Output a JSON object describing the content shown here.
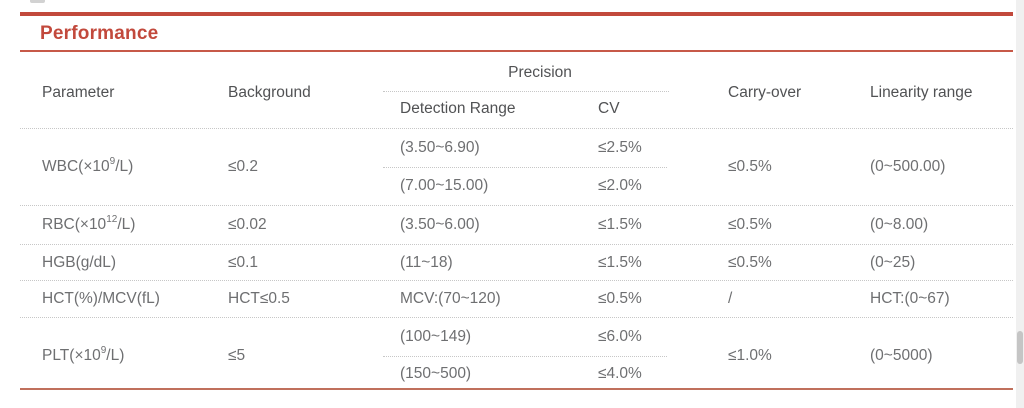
{
  "section": {
    "title": "Performance"
  },
  "colors": {
    "accent_red": "#c2493c",
    "thin_rule_red": "#c75948",
    "bottom_rule_red": "#c0705c",
    "header_text": "#515254",
    "body_text": "#6e6f71",
    "dotted_line": "#c7c7c7",
    "scrollbar_track": "#f0f0f0",
    "scrollbar_thumb": "#c5c5c5"
  },
  "table": {
    "headers": {
      "parameter": "Parameter",
      "background": "Background",
      "precision": "Precision",
      "detection_range": "Detection Range",
      "cv": "CV",
      "carry_over": "Carry-over",
      "linearity_range": "Linearity range"
    },
    "rows": [
      {
        "parameter_pre": "WBC(×10",
        "parameter_sup": "9",
        "parameter_post": "/L)",
        "background": "≤0.2",
        "detection_1": "(3.50~6.90)",
        "cv_1": "≤2.5%",
        "detection_2": "(7.00~15.00)",
        "cv_2": "≤2.0%",
        "carry_over": "≤0.5%",
        "linearity": "(0~500.00)"
      },
      {
        "parameter_pre": "RBC(×10",
        "parameter_sup": "12",
        "parameter_post": "/L)",
        "background": "≤0.02",
        "detection": "(3.50~6.00)",
        "cv": "≤1.5%",
        "carry_over": "≤0.5%",
        "linearity": "(0~8.00)"
      },
      {
        "parameter_pre": "HGB(g/dL)",
        "parameter_sup": "",
        "parameter_post": "",
        "background": "≤0.1",
        "detection": "(11~18)",
        "cv": "≤1.5%",
        "carry_over": "≤0.5%",
        "linearity": "(0~25)"
      },
      {
        "parameter_pre": "HCT(%)/MCV(fL)",
        "parameter_sup": "",
        "parameter_post": "",
        "background": "HCT≤0.5",
        "detection": "MCV:(70~120)",
        "cv": "≤0.5%",
        "carry_over": "/",
        "linearity": "HCT:(0~67)"
      },
      {
        "parameter_pre": "PLT(×10",
        "parameter_sup": "9",
        "parameter_post": "/L)",
        "background": "≤5",
        "detection_1": "(100~149)",
        "cv_1": "≤6.0%",
        "detection_2": "(150~500)",
        "cv_2": "≤4.0%",
        "carry_over": "≤1.0%",
        "linearity": "(0~5000)"
      }
    ]
  }
}
